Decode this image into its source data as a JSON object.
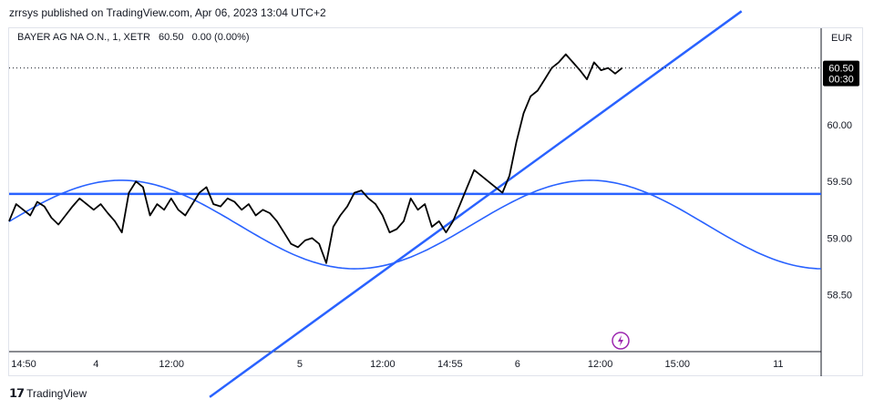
{
  "header": {
    "published_text": "zrrsys published on TradingView.com, Apr 06, 2023 13:04 UTC+2"
  },
  "legend": {
    "symbol": "BAYER AG NA O.N., 1, XETR",
    "last": "60.50",
    "change": "0.00 (0.00%)"
  },
  "axis": {
    "currency": "EUR",
    "price_tag": "60.50",
    "countdown": "00:30"
  },
  "footer": {
    "logo_text": "TradingView"
  },
  "colors": {
    "accent": "#2962ff",
    "price_line": "#000000",
    "price_tag_bg": "#000000"
  },
  "icons": {
    "flash": "lightning-icon",
    "logo": "tradingview-logo-icon"
  },
  "chart_data": {
    "type": "line",
    "ylim": [
      58.0,
      60.85
    ],
    "y_ticks": [
      "60.00",
      "59.50",
      "59.00",
      "58.50"
    ],
    "x_ticks": [
      "14:50",
      "4",
      "12:00",
      "5",
      "12:00",
      "14:55",
      "6",
      "12:00",
      "15:00",
      "11"
    ],
    "series": [
      {
        "values": [
          59.15,
          59.3,
          59.25,
          59.2,
          59.32,
          59.28,
          59.18,
          59.12,
          59.2,
          59.28,
          59.35,
          59.3,
          59.25,
          59.3,
          59.22,
          59.15,
          59.05,
          59.4,
          59.5,
          59.45,
          59.2,
          59.3,
          59.25,
          59.35,
          59.25,
          59.2,
          59.3,
          59.4,
          59.45,
          59.3,
          59.28,
          59.35,
          59.32,
          59.25,
          59.3,
          59.2,
          59.25,
          59.22,
          59.15,
          59.05,
          58.95,
          58.92,
          58.98,
          59.0,
          58.95,
          58.78,
          59.1,
          59.2,
          59.28,
          59.4,
          59.42,
          59.35,
          59.3,
          59.2,
          59.05,
          59.08,
          59.15,
          59.35,
          59.25,
          59.3,
          59.1,
          59.15,
          59.05,
          59.15,
          59.3,
          59.45,
          59.6,
          59.55,
          59.5,
          59.45,
          59.4,
          59.55,
          59.85,
          60.1,
          60.25,
          60.3,
          60.4,
          60.5,
          60.55,
          60.62,
          60.55,
          60.48,
          60.4,
          60.55,
          60.48,
          60.5,
          60.45,
          60.5
        ]
      }
    ],
    "annotations": [
      {
        "type": "horizontal_line",
        "price": 59.39
      },
      {
        "type": "trend_line",
        "from": [
          0.247,
          57.6
        ],
        "to": [
          0.902,
          61.0
        ]
      },
      {
        "type": "sine_wave",
        "amplitude": 0.39,
        "center": 59.12
      }
    ]
  }
}
